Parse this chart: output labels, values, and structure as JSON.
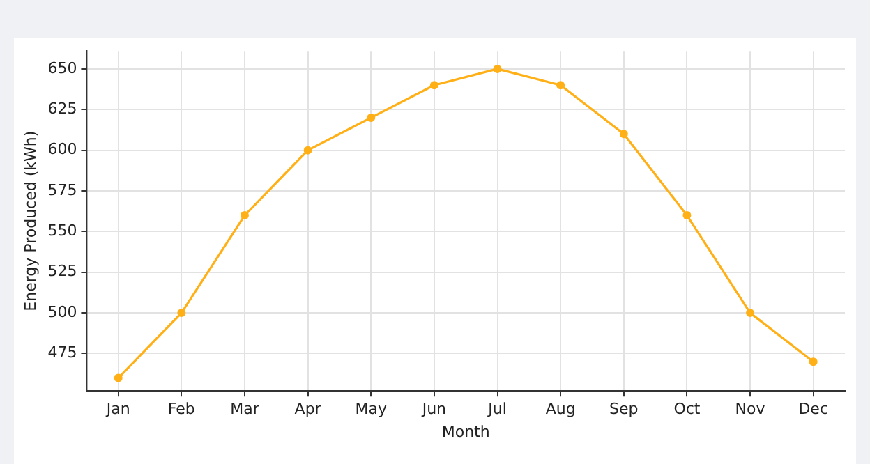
{
  "chart_data": {
    "type": "line",
    "xlabel": "Month",
    "ylabel": "Energy Produced (kWh)",
    "categories": [
      "Jan",
      "Feb",
      "Mar",
      "Apr",
      "May",
      "Jun",
      "Jul",
      "Aug",
      "Sep",
      "Oct",
      "Nov",
      "Dec"
    ],
    "series": [
      {
        "color": "#ffb016",
        "values": [
          460,
          500,
          560,
          600,
          620,
          640,
          650,
          640,
          610,
          560,
          500,
          470
        ]
      }
    ],
    "ylim": [
      452,
      661
    ],
    "yticks": [
      475,
      500,
      525,
      550,
      575,
      600,
      625,
      650
    ],
    "grid": true,
    "marker": "circle",
    "line_style": "solid",
    "legend": false
  }
}
